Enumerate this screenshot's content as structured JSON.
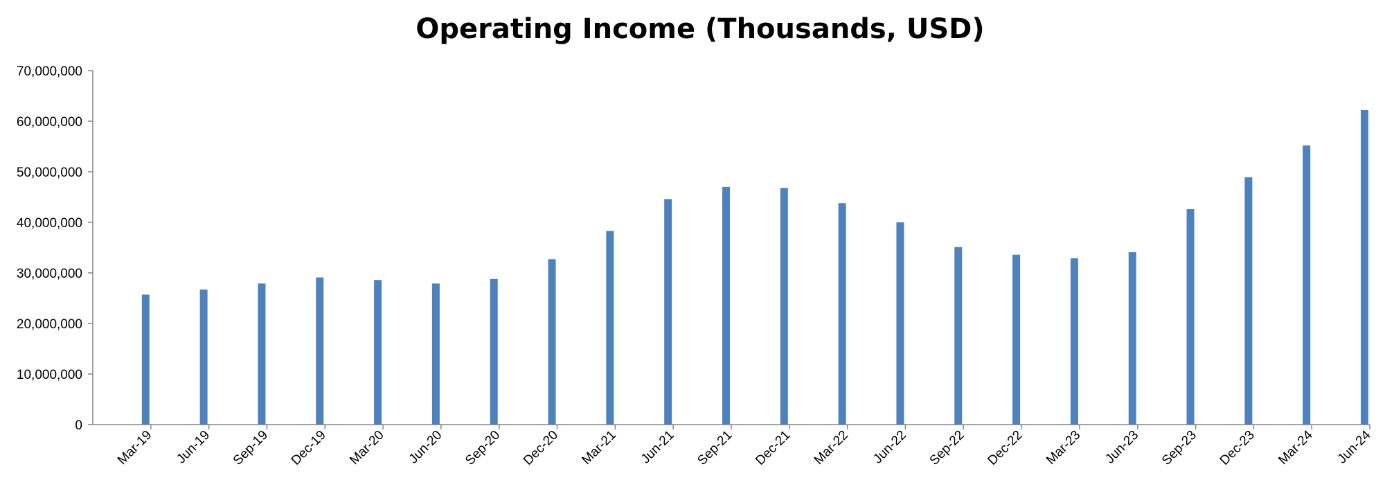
{
  "chart_data": {
    "type": "bar",
    "title": "Operating Income (Thousands, USD)",
    "xlabel": "",
    "ylabel": "",
    "ylim": [
      0,
      70000000
    ],
    "yticks": [
      0,
      10000000,
      20000000,
      30000000,
      40000000,
      50000000,
      60000000,
      70000000
    ],
    "ytick_labels": [
      "0",
      "10,000,000",
      "20,000,000",
      "30,000,000",
      "40,000,000",
      "50,000,000",
      "60,000,000",
      "70,000,000"
    ],
    "grid": false,
    "bar_color": "#4F81BD",
    "categories": [
      "Mar-19",
      "Jun-19",
      "Sep-19",
      "Dec-19",
      "Mar-20",
      "Jun-20",
      "Sep-20",
      "Dec-20",
      "Mar-21",
      "Jun-21",
      "Sep-21",
      "Dec-21",
      "Mar-22",
      "Jun-22",
      "Sep-22",
      "Dec-22",
      "Mar-23",
      "Jun-23",
      "Sep-23",
      "Dec-23",
      "Mar-24",
      "Jun-24"
    ],
    "values": [
      25700000,
      26700000,
      27900000,
      29100000,
      28600000,
      27900000,
      28800000,
      32700000,
      38300000,
      44600000,
      47000000,
      46800000,
      43800000,
      40000000,
      35100000,
      33600000,
      32900000,
      34100000,
      42600000,
      48900000,
      55200000,
      62200000
    ]
  }
}
